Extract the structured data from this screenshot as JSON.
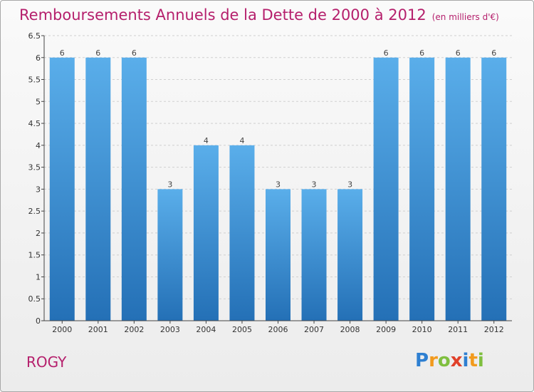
{
  "title": {
    "main": "Remboursements Annuels de la Dette de 2000 à 2012",
    "unit": "(en milliers d'€)"
  },
  "commune": "ROGY",
  "brand": {
    "letters": [
      "P",
      "r",
      "o",
      "x",
      "i",
      "t",
      "i"
    ],
    "colors": [
      "#2e7fd1",
      "#f29a1d",
      "#7fbf3f",
      "#e0402a",
      "#2e7fd1",
      "#f29a1d",
      "#7fbf3f"
    ]
  },
  "colors": {
    "bar_top": "#5aaeea",
    "bar_bottom": "#2470b6",
    "grid": "#d0d0d0",
    "axis": "#444444",
    "title": "#b51f6c"
  },
  "chart_data": {
    "type": "bar",
    "categories": [
      "2000",
      "2001",
      "2002",
      "2003",
      "2004",
      "2005",
      "2006",
      "2007",
      "2008",
      "2009",
      "2010",
      "2011",
      "2012"
    ],
    "values": [
      6,
      6,
      6,
      3,
      4,
      4,
      3,
      3,
      3,
      6,
      6,
      6,
      6
    ],
    "value_labels": [
      "6",
      "6",
      "6",
      "3",
      "4",
      "4",
      "3",
      "3",
      "3",
      "6",
      "6",
      "6",
      "6"
    ],
    "y_ticks": [
      "0",
      "0.5",
      "1",
      "1.5",
      "2",
      "2.5",
      "3",
      "3.5",
      "4",
      "4.5",
      "5",
      "5.5",
      "6",
      "6.5"
    ],
    "ylim": [
      0,
      6.5
    ],
    "grid": true,
    "xlabel": "",
    "ylabel": ""
  }
}
